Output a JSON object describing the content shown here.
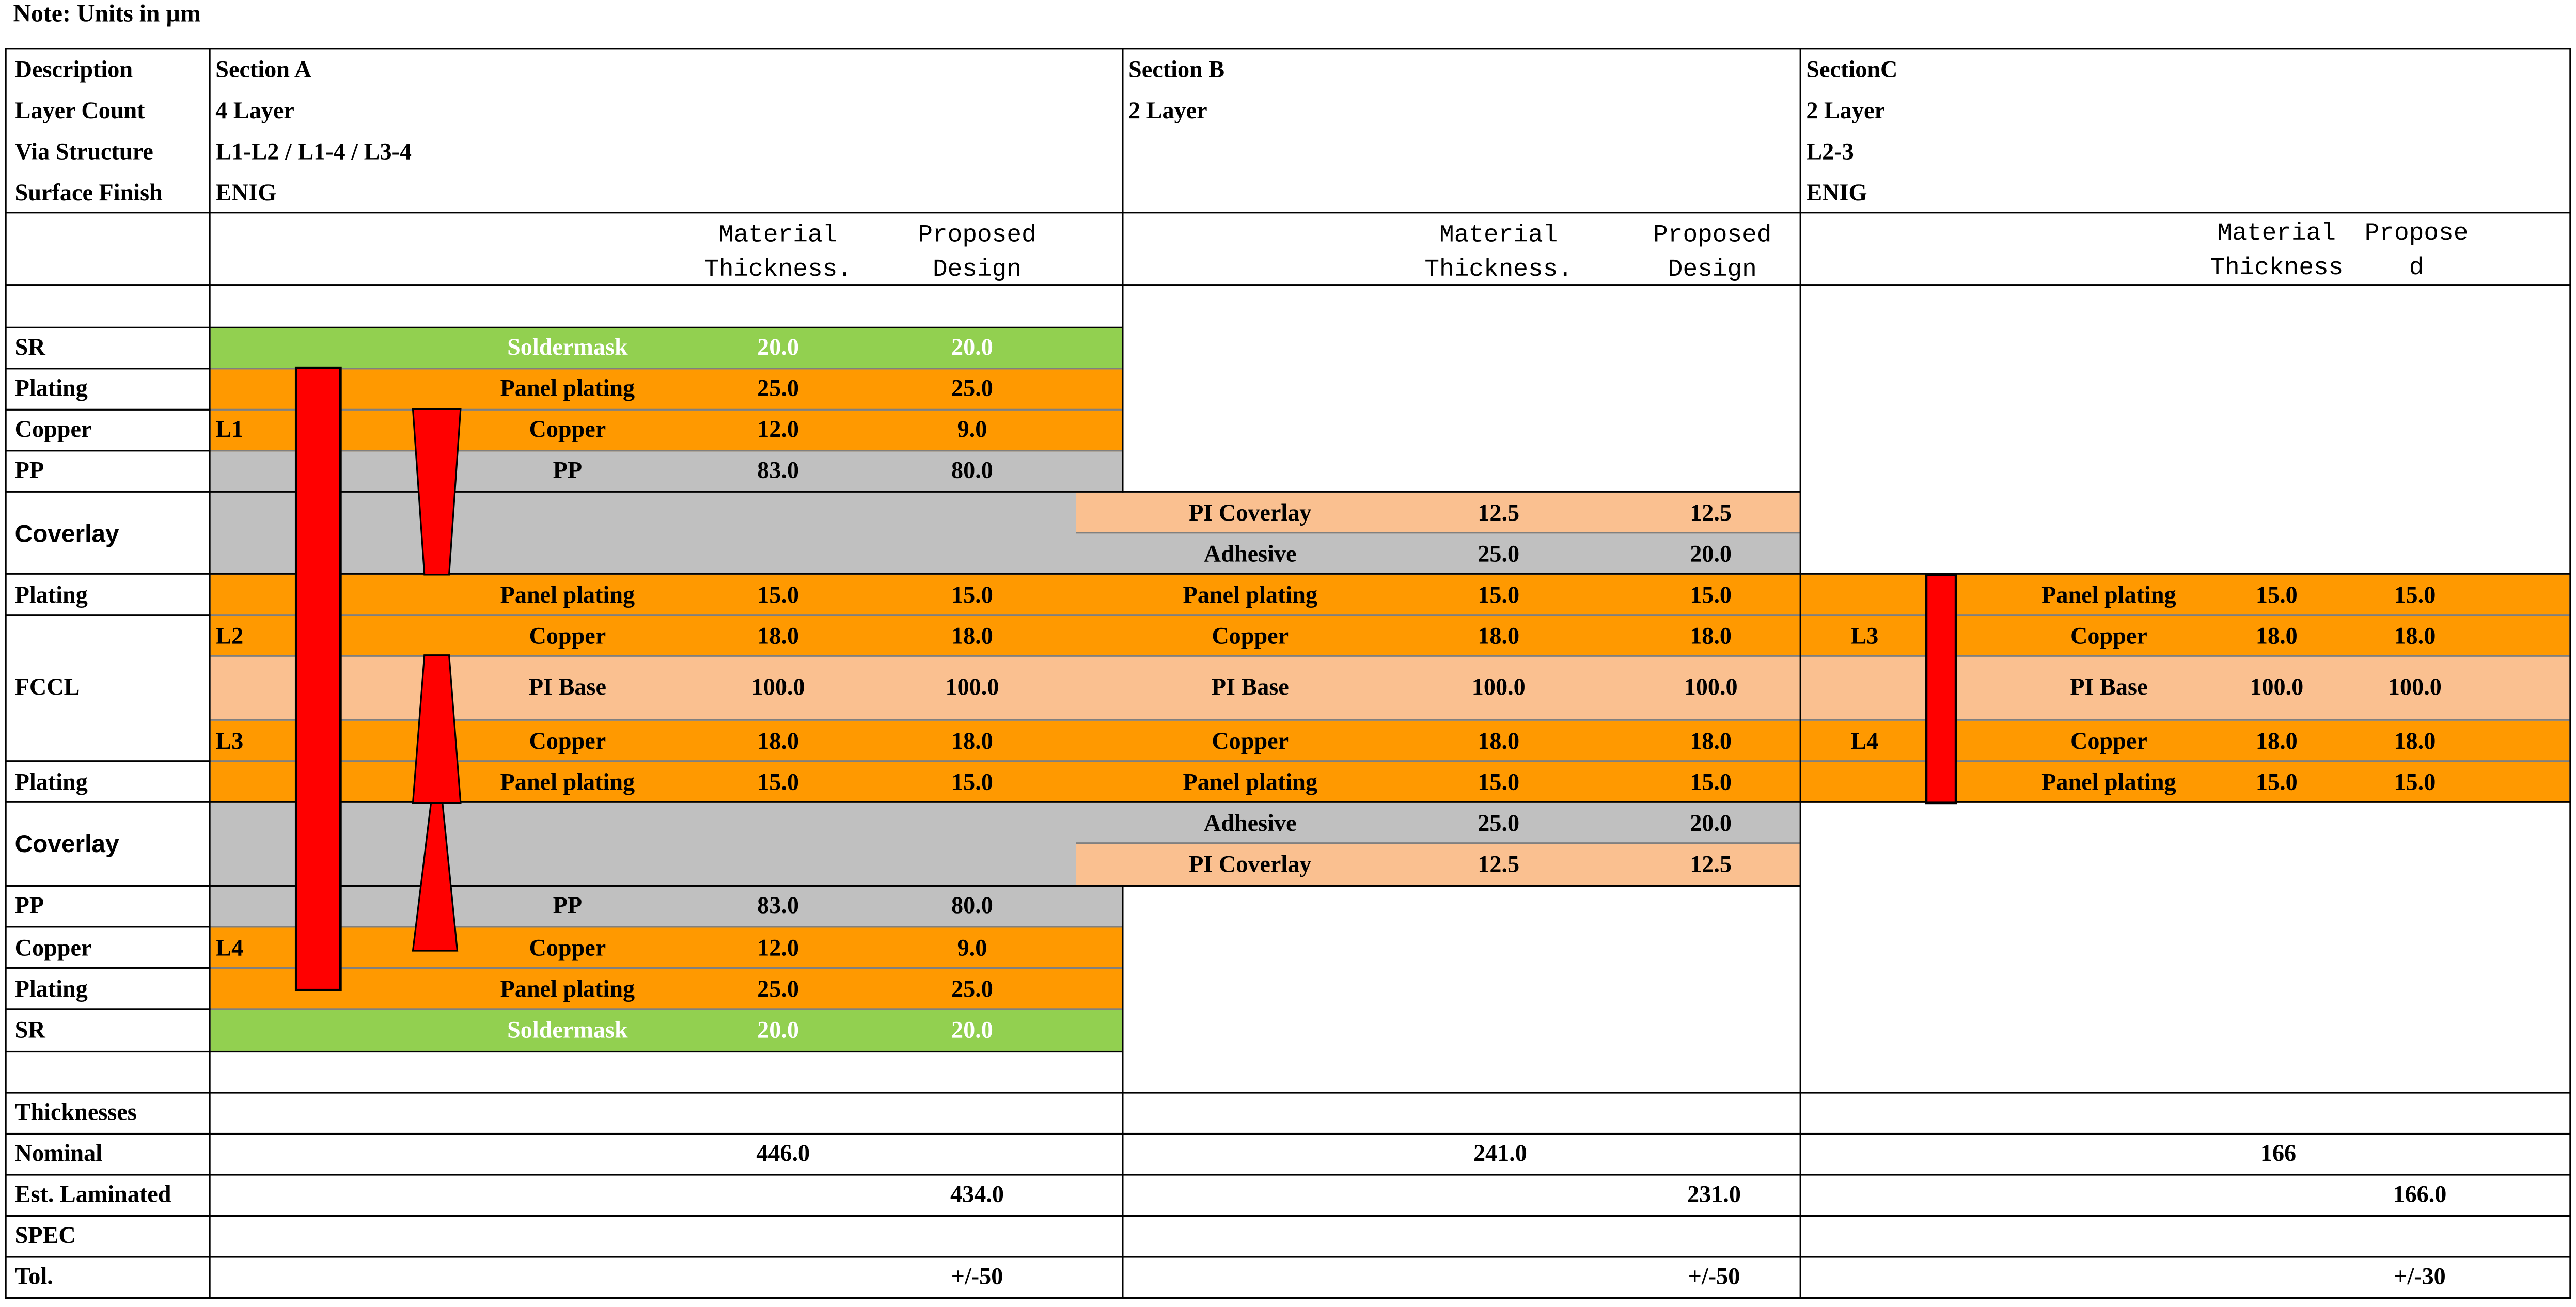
{
  "note": "Note: Units in µm",
  "colors": {
    "soldermask": "#92d050",
    "copper": "#ff9900",
    "prepreg": "#c0c0c0",
    "pi": "#fac090",
    "via": "#ff0000"
  },
  "header": {
    "labels": [
      "Description",
      "Layer Count",
      "Via Structure",
      "Surface Finish"
    ],
    "a": [
      "Section A",
      "4 Layer",
      "L1-L2 / L1-4 / L3-4",
      "ENIG"
    ],
    "b": [
      "Section B",
      "2 Layer"
    ],
    "c": [
      "SectionC",
      "2 Layer",
      "L2-3",
      "ENIG"
    ]
  },
  "columns": {
    "material_thickness": "Material\nThickness.",
    "proposed_design": "Proposed\nDesign",
    "c_material_thickness": "Material\nThickness",
    "c_proposed": "Propose\nd"
  },
  "rows": {
    "sr": "SR",
    "plating": "Plating",
    "copper": "Copper",
    "pp": "PP",
    "coverlay": "Coverlay",
    "fccl": "FCCL"
  },
  "layers": {
    "l1": "L1",
    "l2": "L2",
    "l3": "L3",
    "l4": "L4"
  },
  "materials": {
    "soldermask": "Soldermask",
    "panel_plating": "Panel plating",
    "copper": "Copper",
    "pp": "PP",
    "pi_coverlay": "PI Coverlay",
    "adhesive": "Adhesive",
    "pi_base": "PI Base"
  },
  "section_a": {
    "soldermask": [
      "20.0",
      "20.0"
    ],
    "plating_outer": [
      "25.0",
      "25.0"
    ],
    "copper_outer": [
      "12.0",
      "9.0"
    ],
    "pp": [
      "83.0",
      "80.0"
    ],
    "plating_inner": [
      "15.0",
      "15.0"
    ],
    "copper_inner": [
      "18.0",
      "18.0"
    ],
    "pi_base": [
      "100.0",
      "100.0"
    ]
  },
  "section_b": {
    "pi_coverlay": [
      "12.5",
      "12.5"
    ],
    "adhesive": [
      "25.0",
      "20.0"
    ],
    "plating": [
      "15.0",
      "15.0"
    ],
    "copper": [
      "18.0",
      "18.0"
    ],
    "pi_base": [
      "100.0",
      "100.0"
    ]
  },
  "section_c": {
    "plating": [
      "15.0",
      "15.0"
    ],
    "copper": [
      "18.0",
      "18.0"
    ],
    "pi_base": [
      "100.0",
      "100.0"
    ]
  },
  "summary": {
    "labels": [
      "Thicknesses",
      "Nominal",
      "Est. Laminated",
      "SPEC",
      "Tol."
    ],
    "a": {
      "nominal": "446.0",
      "laminated": "434.0",
      "tol": "+/-50"
    },
    "b": {
      "nominal": "241.0",
      "laminated": "231.0",
      "tol": "+/-50"
    },
    "c": {
      "nominal": "166",
      "laminated": "166.0",
      "tol": "+/-30"
    }
  }
}
